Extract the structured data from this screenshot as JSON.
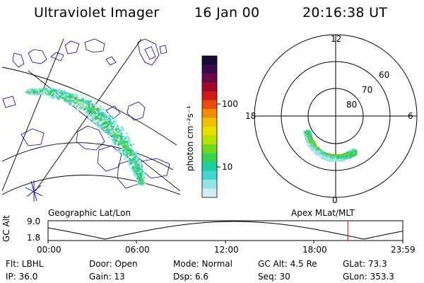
{
  "header": {
    "title": "Ultraviolet Imager",
    "date": "16 Jan 00",
    "time": "20:16:38 UT"
  },
  "colorbar": {
    "label": "photon cm⁻²s⁻¹",
    "ticks": [
      "100",
      "10"
    ],
    "colors": [
      "#1a0a33",
      "#3b0a4d",
      "#6a0a4a",
      "#a00a2a",
      "#d01818",
      "#e84a10",
      "#f08a08",
      "#f0c000",
      "#e8e000",
      "#b8e000",
      "#70d820",
      "#38d050",
      "#20d0a0",
      "#40d8d0",
      "#90e4e8",
      "#d0eef0"
    ]
  },
  "left_panel": {
    "label": "Geographic Lat/Lon"
  },
  "right_panel": {
    "label": "Apex MLat/MLT",
    "mlt_labels": {
      "top": "12",
      "left": "18",
      "right": "6",
      "bottom": "0"
    },
    "lat_labels": [
      "60",
      "70",
      "80"
    ]
  },
  "timeline": {
    "axis_title": "GC Alt",
    "y_top": "9.0",
    "y_bottom": "1.8",
    "ticks": [
      "00:00",
      "06:00",
      "12:00",
      "18:00",
      "23:59"
    ],
    "marker_fraction": 0.845,
    "marker_color": "#e00000"
  },
  "info": {
    "flt": "Flt: LBHL",
    "ip": "IP: 36.0",
    "door": "Door: Open",
    "gain": "Gain: 13",
    "mode": "Mode: Normal",
    "dsp": "Dsp:     6.6",
    "gcalt": "GC Alt: 4.5 Re",
    "seq": "Seq: 30",
    "glat": "GLat:  73.3",
    "glon": "GLon: 353.3"
  },
  "aurora_colors": [
    "#d6ecf0",
    "#a0e4e4",
    "#50d4c0",
    "#30c870",
    "#70d030",
    "#b8e040"
  ]
}
